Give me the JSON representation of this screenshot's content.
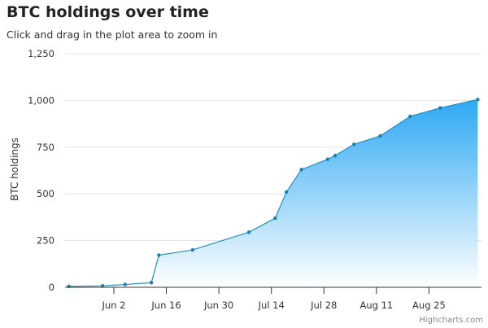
{
  "chart_data": {
    "type": "area",
    "title": "BTC holdings over time",
    "subtitle": "Click and drag in the plot area to zoom in",
    "ylabel": "BTC holdings",
    "xlabel": "",
    "ylim": [
      0,
      1250
    ],
    "yticks": [
      0,
      250,
      500,
      750,
      1000,
      1250
    ],
    "ytick_labels": [
      "0",
      "250",
      "500",
      "750",
      "1,000",
      "1,250"
    ],
    "xlim": [
      "2024-05-20",
      "2024-09-08"
    ],
    "xticks": [
      "2024-06-02",
      "2024-06-16",
      "2024-06-30",
      "2024-07-14",
      "2024-07-28",
      "2024-08-11",
      "2024-08-25"
    ],
    "xtick_labels": [
      "Jun 2",
      "Jun 16",
      "Jun 30",
      "Jul 14",
      "Jul 28",
      "Aug 11",
      "Aug 25"
    ],
    "grid": true,
    "legend": false,
    "series": [
      {
        "x": [
          "2024-05-21",
          "2024-05-30",
          "2024-06-05",
          "2024-06-12",
          "2024-06-14",
          "2024-06-23",
          "2024-07-08",
          "2024-07-15",
          "2024-07-18",
          "2024-07-22",
          "2024-07-29",
          "2024-07-31",
          "2024-08-05",
          "2024-08-12",
          "2024-08-20",
          "2024-08-28",
          "2024-09-07"
        ],
        "y": [
          5,
          8,
          15,
          25,
          172,
          200,
          295,
          370,
          510,
          630,
          685,
          705,
          765,
          810,
          915,
          960,
          1005
        ]
      }
    ],
    "colors": {
      "line": "#2a8fb8",
      "marker": "#1e7fae",
      "fill_top": "#2ea8f3",
      "fill_bottom": "#ffffff",
      "grid": "#e3e3e3",
      "axis": "#333333"
    }
  },
  "credits": "Highcharts.com"
}
